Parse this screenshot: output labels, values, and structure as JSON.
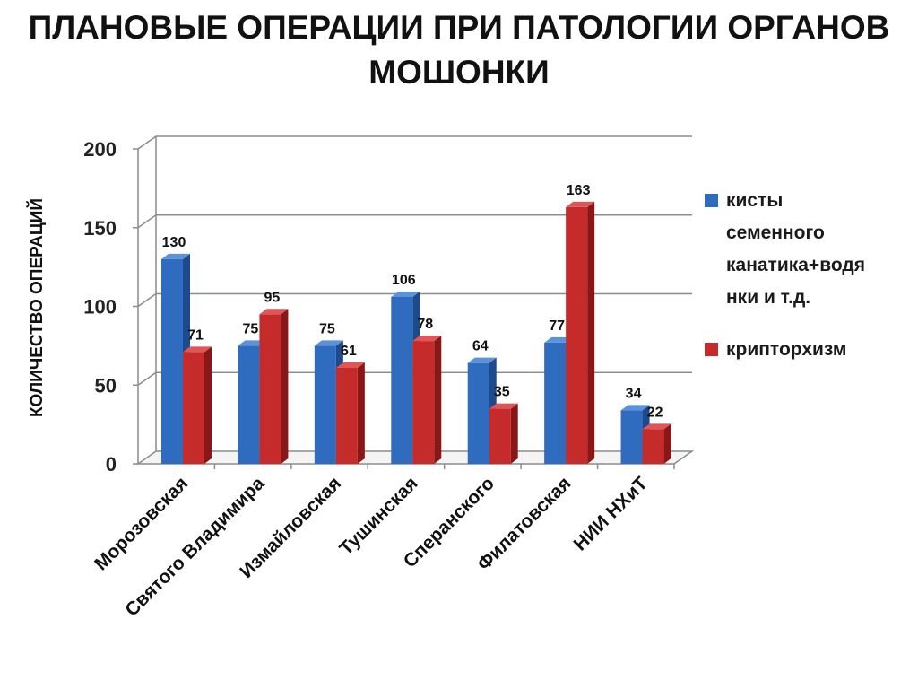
{
  "title_line1": "ПЛАНОВЫЕ ОПЕРАЦИИ ПРИ ПАТОЛОГИИ ОРГАНОВ",
  "title_line2": "МОШОНКИ",
  "colors": {
    "blue": "#2f6cc0",
    "blue_top": "#5c93d8",
    "blue_side": "#1d4a8a",
    "red": "#c62b2b",
    "red_top": "#de5656",
    "red_side": "#8a1717",
    "grid": "#8c8c8c"
  },
  "chart_data": {
    "type": "bar",
    "ylabel": "КОЛИЧЕСТВО ОПЕРАЦИЙ",
    "xlabel": "",
    "ylim": [
      0,
      200
    ],
    "yticks": [
      "0",
      "50",
      "100",
      "150",
      "200"
    ],
    "grid": true,
    "legend_position": "right",
    "categories": [
      "Морозовская",
      "Святого Владимира",
      "Измайловская",
      "Тушинская",
      "Сперанского",
      "Филатовская",
      "НИИ НХиТ"
    ],
    "series": [
      {
        "name": "кисты семенного канатика+водянки и т.д.",
        "values": [
          130,
          75,
          75,
          106,
          64,
          77,
          34
        ]
      },
      {
        "name": "крипторхизм",
        "values": [
          71,
          95,
          61,
          78,
          35,
          163,
          22
        ]
      }
    ],
    "legend_lines": [
      "кисты",
      "семенного",
      "канатика+водя",
      "нки и т.д."
    ]
  }
}
